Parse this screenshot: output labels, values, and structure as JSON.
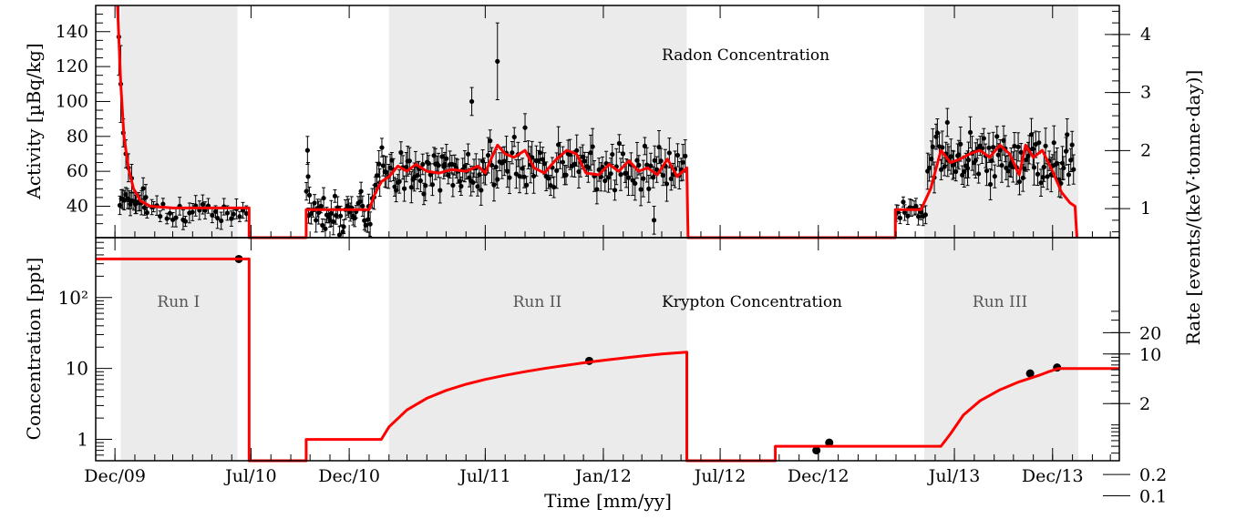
{
  "chart_data": [
    {
      "panel": "top",
      "type": "scatter",
      "title": "Radon Concentration",
      "xlabel": "",
      "ylabel": "Activity [µBq/kg]",
      "ylabel_right": "",
      "ylim": [
        22,
        155
      ],
      "y_right_range": [
        0.5,
        4.5
      ],
      "y_ticks": [
        "40",
        "60",
        "80",
        "100",
        "120",
        "140"
      ],
      "y_right_ticks": [
        "1",
        "2",
        "3",
        "4"
      ],
      "shaded_runs": [
        {
          "start": "2009-12-10",
          "end": "2010-06-10"
        },
        {
          "start": "2011-02-01",
          "end": "2012-05-10"
        },
        {
          "start": "2013-05-15",
          "end": "2014-01-10"
        }
      ],
      "series": [
        {
          "kind": "model-line",
          "color": "#ff0000",
          "points": [
            [
              "2009-12-05",
              155
            ],
            [
              "2009-12-10",
              110
            ],
            [
              "2009-12-15",
              80
            ],
            [
              "2009-12-22",
              62
            ],
            [
              "2009-12-30",
              50
            ],
            [
              "2010-01-10",
              43
            ],
            [
              "2010-01-25",
              40
            ],
            [
              "2010-03-01",
              39
            ],
            [
              "2010-06-28",
              39
            ],
            [
              "2010-06-28",
              22
            ],
            [
              "2010-09-25",
              22
            ],
            [
              "2010-09-25",
              38
            ],
            [
              "2011-01-01",
              38
            ],
            [
              "2011-01-10",
              47
            ],
            [
              "2011-01-20",
              54
            ],
            [
              "2011-02-01",
              57
            ],
            [
              "2011-02-15",
              63
            ],
            [
              "2011-03-01",
              60
            ],
            [
              "2011-03-15",
              64
            ],
            [
              "2011-04-01",
              60
            ],
            [
              "2011-04-20",
              59
            ],
            [
              "2011-05-10",
              61
            ],
            [
              "2011-06-01",
              60
            ],
            [
              "2011-06-20",
              63
            ],
            [
              "2011-07-01",
              59
            ],
            [
              "2011-07-10",
              67
            ],
            [
              "2011-07-20",
              75
            ],
            [
              "2011-08-01",
              70
            ],
            [
              "2011-08-15",
              68
            ],
            [
              "2011-09-01",
              72
            ],
            [
              "2011-09-15",
              62
            ],
            [
              "2011-10-01",
              59
            ],
            [
              "2011-10-20",
              67
            ],
            [
              "2011-11-05",
              72
            ],
            [
              "2011-11-20",
              70
            ],
            [
              "2011-12-05",
              59
            ],
            [
              "2011-12-25",
              58
            ],
            [
              "2012-01-10",
              64
            ],
            [
              "2012-01-25",
              60
            ],
            [
              "2012-02-10",
              66
            ],
            [
              "2012-02-25",
              60
            ],
            [
              "2012-03-10",
              62
            ],
            [
              "2012-03-25",
              58
            ],
            [
              "2012-04-10",
              67
            ],
            [
              "2012-04-25",
              57
            ],
            [
              "2012-05-10",
              62
            ],
            [
              "2012-05-12",
              22
            ],
            [
              "2013-03-31",
              22
            ],
            [
              "2013-03-31",
              38
            ],
            [
              "2013-05-10",
              38
            ],
            [
              "2013-05-25",
              50
            ],
            [
              "2013-06-10",
              72
            ],
            [
              "2013-06-25",
              65
            ],
            [
              "2013-07-10",
              67
            ],
            [
              "2013-07-25",
              70
            ],
            [
              "2013-08-10",
              72
            ],
            [
              "2013-08-25",
              68
            ],
            [
              "2013-09-10",
              75
            ],
            [
              "2013-09-25",
              70
            ],
            [
              "2013-10-10",
              58
            ],
            [
              "2013-10-20",
              75
            ],
            [
              "2013-11-01",
              68
            ],
            [
              "2013-11-15",
              72
            ],
            [
              "2013-12-01",
              60
            ],
            [
              "2013-12-15",
              48
            ],
            [
              "2013-12-28",
              42
            ],
            [
              "2014-01-05",
              40
            ],
            [
              "2014-01-08",
              22
            ]
          ]
        },
        {
          "kind": "measurements",
          "color": "#000000",
          "segments": [
            {
              "start": "2009-12-08",
              "end": "2010-01-20",
              "n": 18,
              "base": 44,
              "noise": 3,
              "err": 5
            },
            {
              "start": "2010-01-20",
              "end": "2010-06-28",
              "n": 32,
              "base": 37,
              "noise": 3,
              "err": 4
            },
            {
              "start": "2010-09-25",
              "end": "2011-01-05",
              "n": 42,
              "base": 37,
              "noise": 6,
              "err": 5
            },
            {
              "start": "2011-01-05",
              "end": "2011-07-01",
              "n": 70,
              "base": 60,
              "noise": 6,
              "err": 6
            },
            {
              "start": "2011-07-01",
              "end": "2012-05-10",
              "n": 100,
              "base": 64,
              "noise": 7,
              "err": 7
            },
            {
              "start": "2013-03-31",
              "end": "2013-05-20",
              "n": 14,
              "base": 38,
              "noise": 3,
              "err": 4
            },
            {
              "start": "2013-05-20",
              "end": "2014-01-05",
              "n": 90,
              "base": 68,
              "noise": 7,
              "err": 7
            }
          ],
          "points": [
            [
              "2009-12-07",
              137
            ],
            [
              "2009-12-10",
              110
            ],
            [
              "2009-12-14",
              82
            ],
            [
              "2009-12-18",
              70
            ],
            [
              "2009-12-22",
              62
            ],
            [
              "2009-12-27",
              56
            ],
            [
              "2010-09-27",
              72
            ],
            [
              "2010-09-28",
              57
            ],
            [
              "2011-07-20",
              123
            ],
            [
              "2011-06-10",
              100
            ],
            [
              "2011-09-01",
              85
            ],
            [
              "2012-03-20",
              32
            ],
            [
              "2013-06-20",
              88
            ]
          ]
        }
      ]
    },
    {
      "panel": "bottom",
      "type": "line",
      "title": "Krypton Concentration",
      "xlabel": "Time [mm/yy]",
      "ylabel": "Concentration [ppt]",
      "ylabel_right": "Rate [events/(keV·tonne·day)]",
      "scale": "log",
      "ylim": [
        0.5,
        700
      ],
      "y_ticks": [
        "1",
        "10",
        "10²"
      ],
      "y_right_ticks": [
        "0.1",
        "0.2",
        "2",
        "10",
        "20"
      ],
      "x_ticks": [
        "Dec/09",
        "Jul/10",
        "Dec/10",
        "Jul/11",
        "Jan/12",
        "Jul/12",
        "Dec/12",
        "Jul/13",
        "Dec/13"
      ],
      "x_tick_dates": [
        "2009-12-01",
        "2010-07-01",
        "2010-12-01",
        "2011-07-01",
        "2012-01-01",
        "2012-07-01",
        "2012-12-01",
        "2013-07-01",
        "2013-12-01"
      ],
      "xlim": [
        "2009-11-01",
        "2014-03-15"
      ],
      "run_labels": [
        {
          "text": "Run I",
          "at": "2010-03-10"
        },
        {
          "text": "Run II",
          "at": "2011-09-20"
        },
        {
          "text": "Run III",
          "at": "2013-09-10"
        }
      ],
      "series": [
        {
          "kind": "model-line",
          "color": "#ff0000",
          "points": [
            [
              "2009-11-01",
              350
            ],
            [
              "2010-06-28",
              350
            ],
            [
              "2010-06-28",
              0.5
            ],
            [
              "2010-09-25",
              0.5
            ],
            [
              "2010-09-25",
              1.0
            ],
            [
              "2011-01-20",
              1.0
            ],
            [
              "2011-02-01",
              1.5
            ],
            [
              "2011-03-01",
              2.6
            ],
            [
              "2011-04-01",
              3.8
            ],
            [
              "2011-05-01",
              4.9
            ],
            [
              "2011-06-01",
              6.0
            ],
            [
              "2011-07-01",
              7.0
            ],
            [
              "2011-08-01",
              8.0
            ],
            [
              "2011-09-01",
              9.0
            ],
            [
              "2011-10-01",
              10.0
            ],
            [
              "2011-11-01",
              11.0
            ],
            [
              "2011-12-01",
              12.0
            ],
            [
              "2012-01-01",
              13.0
            ],
            [
              "2012-02-01",
              14.0
            ],
            [
              "2012-03-01",
              15.0
            ],
            [
              "2012-04-01",
              16.0
            ],
            [
              "2012-05-10",
              17.0
            ],
            [
              "2012-05-10",
              0.5
            ],
            [
              "2012-09-25",
              0.5
            ],
            [
              "2012-09-25",
              0.8
            ],
            [
              "2013-06-10",
              0.8
            ],
            [
              "2013-06-25",
              1.2
            ],
            [
              "2013-07-15",
              2.2
            ],
            [
              "2013-08-10",
              3.5
            ],
            [
              "2013-09-10",
              5.0
            ],
            [
              "2013-10-10",
              6.5
            ],
            [
              "2013-11-10",
              8.0
            ],
            [
              "2013-11-25",
              9.0
            ],
            [
              "2013-12-10",
              10.0
            ],
            [
              "2014-03-15",
              10.0
            ]
          ]
        },
        {
          "kind": "measurements",
          "color": "#000000",
          "points": [
            {
              "x": "2010-06-12",
              "y": 350,
              "err": 0
            },
            {
              "x": "2011-12-10",
              "y": 12.8,
              "err": 0
            },
            {
              "x": "2012-11-28",
              "y": 0.7,
              "err": 0.08
            },
            {
              "x": "2012-12-18",
              "y": 0.9,
              "err": 0.1
            },
            {
              "x": "2013-10-27",
              "y": 8.5,
              "err": 0
            },
            {
              "x": "2013-12-08",
              "y": 10.3,
              "err": 0
            }
          ]
        }
      ]
    }
  ]
}
